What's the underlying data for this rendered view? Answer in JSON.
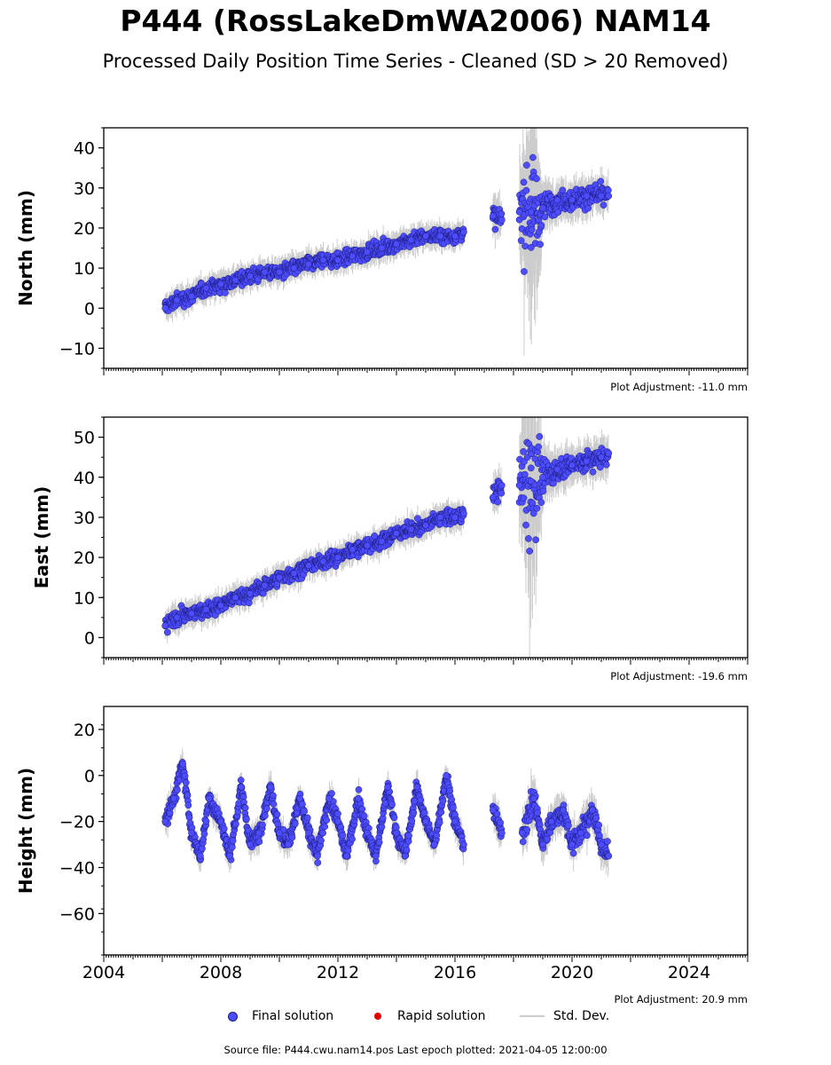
{
  "header": {
    "title": "P444 (RossLakeDmWA2006) NAM14",
    "subtitle": "Processed Daily Position Time Series - Cleaned (SD > 20 Removed)"
  },
  "legend": {
    "final": "Final solution",
    "rapid": "Rapid solution",
    "std": "Std. Dev."
  },
  "footer": {
    "source": "Source file: P444.cwu.nam14.pos  Last epoch plotted: 2021-04-05 12:00:00"
  },
  "colors": {
    "final_fill": "#4d4dff",
    "final_edge": "#1a1a7a",
    "rapid": "#e00000",
    "std_dev": "#cccccc"
  },
  "chart_data": [
    {
      "type": "scatter",
      "ylabel": "North (mm)",
      "adjustment": "Plot Adjustment: -11.0 mm",
      "xlim": [
        2004,
        2026
      ],
      "ylim": [
        -15,
        45
      ],
      "yticks": [
        -10,
        0,
        10,
        20,
        30,
        40
      ],
      "ytick_labels": [
        "−10",
        "0",
        "10",
        "20",
        "30",
        "40"
      ],
      "series": [
        {
          "x": [
            2006.1,
            2006.5,
            2007.0,
            2007.5,
            2008.0,
            2008.5,
            2009.0,
            2009.5,
            2010.0,
            2010.5,
            2011.0,
            2011.5,
            2012.0,
            2012.5,
            2013.0,
            2013.5,
            2014.0,
            2014.5,
            2015.0,
            2015.5,
            2016.0,
            2016.3,
            2017.3,
            2017.6,
            2018.2,
            2018.6,
            2019.0,
            2019.5,
            2020.0,
            2020.5,
            2021.0,
            2021.25
          ],
          "y": [
            0,
            2,
            3,
            5,
            6,
            7,
            8,
            9,
            9,
            10,
            11,
            12,
            12,
            13,
            14,
            15,
            16,
            17,
            18,
            18,
            18,
            19,
            23,
            22,
            24,
            24,
            25,
            27,
            27,
            28,
            28,
            28
          ],
          "error": [
            2,
            2,
            2,
            2,
            2,
            2,
            2,
            2,
            2,
            2,
            2,
            2,
            2,
            2,
            2,
            2,
            2,
            2,
            2,
            2,
            2,
            2,
            3,
            3,
            8,
            18,
            4,
            3,
            3,
            3,
            3,
            3
          ]
        }
      ]
    },
    {
      "type": "scatter",
      "ylabel": "East (mm)",
      "adjustment": "Plot Adjustment: -19.6 mm",
      "xlim": [
        2004,
        2026
      ],
      "ylim": [
        -5,
        55
      ],
      "yticks": [
        0,
        10,
        20,
        30,
        40,
        50
      ],
      "ytick_labels": [
        "0",
        "10",
        "20",
        "30",
        "40",
        "50"
      ],
      "series": [
        {
          "x": [
            2006.1,
            2006.5,
            2007.0,
            2007.5,
            2008.0,
            2008.5,
            2009.0,
            2009.5,
            2010.0,
            2010.5,
            2011.0,
            2011.5,
            2012.0,
            2012.5,
            2013.0,
            2013.5,
            2014.0,
            2014.5,
            2015.0,
            2015.5,
            2016.0,
            2016.3,
            2017.3,
            2017.6,
            2018.2,
            2018.6,
            2019.0,
            2019.5,
            2020.0,
            2020.5,
            2021.0,
            2021.25
          ],
          "y": [
            3,
            5,
            6,
            7,
            8,
            10,
            11,
            13,
            15,
            16,
            18,
            19,
            20,
            22,
            23,
            24,
            26,
            27,
            28,
            30,
            30,
            31,
            35,
            38,
            38,
            39,
            40,
            42,
            43,
            44,
            45,
            46
          ],
          "error": [
            2,
            2,
            2,
            2,
            2,
            2,
            2,
            2,
            2,
            2,
            2,
            2,
            2,
            2,
            2,
            2,
            2,
            2,
            2,
            2,
            2,
            2,
            3,
            3,
            6,
            20,
            4,
            3,
            3,
            3,
            3,
            3
          ]
        }
      ]
    },
    {
      "type": "scatter",
      "ylabel": "Height (mm)",
      "adjustment": "Plot Adjustment: 20.9 mm",
      "xlim": [
        2004,
        2026
      ],
      "ylim": [
        -78,
        30
      ],
      "yticks": [
        -60,
        -40,
        -20,
        0,
        20
      ],
      "ytick_labels": [
        "−60",
        "−40",
        "−20",
        "0",
        "20"
      ],
      "xticks": [
        2004,
        2008,
        2012,
        2016,
        2020,
        2024
      ],
      "xtick_labels": [
        "2004",
        "2008",
        "2012",
        "2016",
        "2020",
        "2024"
      ],
      "series": [
        {
          "x": [
            2006.1,
            2006.4,
            2006.7,
            2007.0,
            2007.3,
            2007.6,
            2008.0,
            2008.3,
            2008.7,
            2009.0,
            2009.3,
            2009.7,
            2010.0,
            2010.3,
            2010.7,
            2011.0,
            2011.3,
            2011.7,
            2012.0,
            2012.3,
            2012.7,
            2013.0,
            2013.3,
            2013.7,
            2014.0,
            2014.3,
            2014.7,
            2015.0,
            2015.3,
            2015.7,
            2016.0,
            2016.3,
            2017.3,
            2017.6,
            2018.3,
            2018.7,
            2019.0,
            2019.3,
            2019.7,
            2020.0,
            2020.3,
            2020.7,
            2021.0,
            2021.25
          ],
          "y": [
            -20,
            -10,
            5,
            -25,
            -35,
            -10,
            -20,
            -35,
            -5,
            -30,
            -25,
            -5,
            -25,
            -30,
            -10,
            -25,
            -35,
            -10,
            -20,
            -35,
            -10,
            -25,
            -35,
            -5,
            -25,
            -35,
            -5,
            -20,
            -30,
            0,
            -20,
            -30,
            -15,
            -25,
            -25,
            -10,
            -30,
            -20,
            -15,
            -30,
            -25,
            -15,
            -30,
            -35
          ],
          "error": [
            4,
            4,
            4,
            4,
            4,
            4,
            4,
            4,
            4,
            4,
            4,
            4,
            4,
            4,
            4,
            4,
            4,
            4,
            4,
            4,
            4,
            4,
            4,
            4,
            4,
            4,
            4,
            4,
            4,
            4,
            4,
            4,
            5,
            5,
            6,
            6,
            5,
            5,
            5,
            5,
            5,
            5,
            5,
            5
          ]
        }
      ]
    }
  ]
}
